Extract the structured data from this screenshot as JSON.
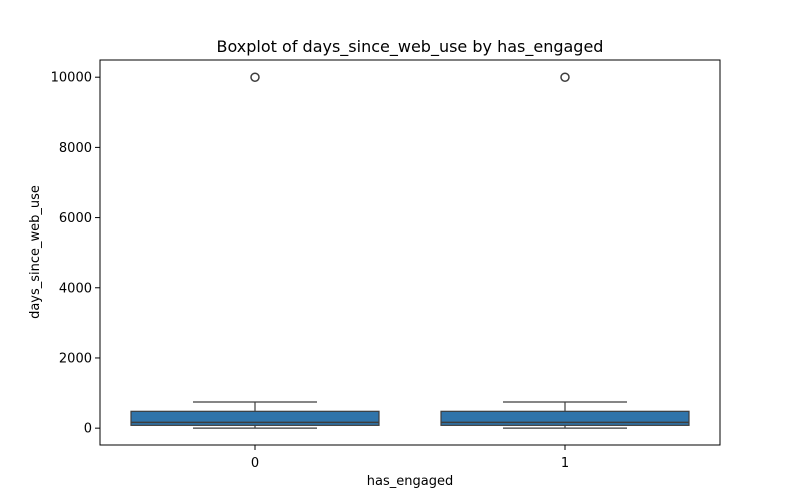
{
  "chart_data": {
    "type": "box",
    "title": "Boxplot of days_since_web_use by has_engaged",
    "xlabel": "has_engaged",
    "ylabel": "days_since_web_use",
    "categories": [
      "0",
      "1"
    ],
    "ylim": [
      -480,
      10490
    ],
    "yticks": [
      0,
      2000,
      4000,
      6000,
      8000,
      10000
    ],
    "box_color": "#2f74aa",
    "line_color": "#3d3d3d",
    "boxes": [
      {
        "category": "0",
        "whisker_low": 0,
        "q1": 80,
        "median": 165,
        "q3": 480,
        "whisker_high": 745,
        "outliers": [
          9999
        ]
      },
      {
        "category": "1",
        "whisker_low": 0,
        "q1": 80,
        "median": 165,
        "q3": 480,
        "whisker_high": 745,
        "outliers": [
          9999
        ]
      }
    ]
  }
}
